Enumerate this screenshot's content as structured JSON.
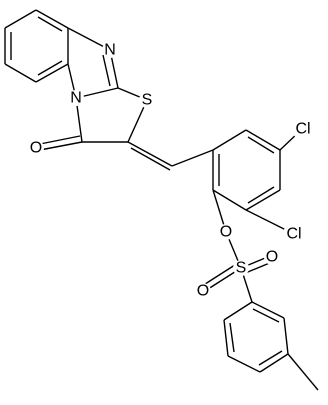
{
  "atoms": [
    "N",
    "N",
    "S",
    "O",
    "Cl",
    "Cl",
    "O",
    "S",
    "O",
    "O"
  ]
}
